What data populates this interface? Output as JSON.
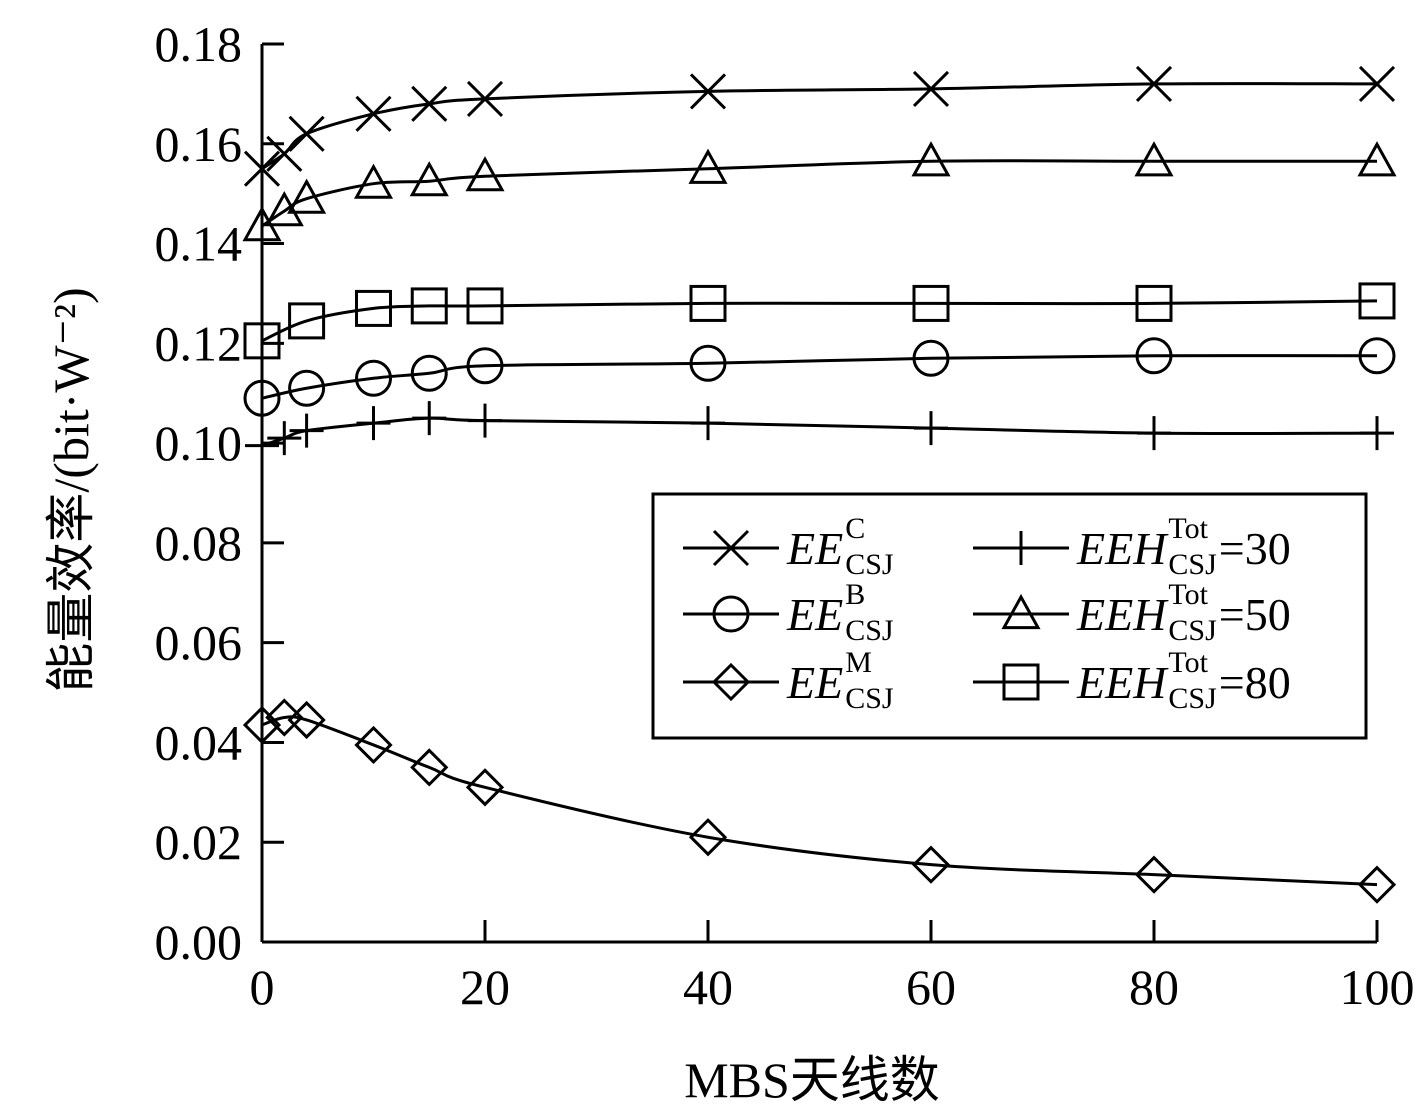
{
  "chart_data": {
    "type": "line",
    "xlabel": "MBS天线数",
    "ylabel": "能量效率/(bit·W⁻²)",
    "xlim": [
      0,
      100
    ],
    "ylim": [
      0,
      0.18
    ],
    "x_ticks": [
      "0",
      "20",
      "40",
      "60",
      "80",
      "100"
    ],
    "y_ticks": [
      "0.00",
      "0.02",
      "0.04",
      "0.06",
      "0.08",
      "0.10",
      "0.12",
      "0.14",
      "0.16",
      "0.18"
    ],
    "legend_position": "center-right",
    "grid": false,
    "series": [
      {
        "name": "EE_CSJ^C",
        "base": "EE",
        "sub": "CSJ",
        "sup": "C",
        "suffix": "",
        "marker": "x",
        "x": [
          0,
          2,
          4,
          10,
          15,
          20,
          40,
          60,
          80,
          100
        ],
        "y": [
          0.155,
          0.158,
          0.162,
          0.166,
          0.168,
          0.169,
          0.1705,
          0.171,
          0.172,
          0.172
        ]
      },
      {
        "name": "EE_CSJ^B",
        "base": "EE",
        "sub": "CSJ",
        "sup": "B",
        "suffix": "",
        "marker": "circle",
        "x": [
          0,
          4,
          10,
          15,
          20,
          40,
          60,
          80,
          100
        ],
        "y": [
          0.109,
          0.111,
          0.113,
          0.114,
          0.1155,
          0.116,
          0.117,
          0.1175,
          0.1175
        ]
      },
      {
        "name": "EE_CSJ^M",
        "base": "EE",
        "sub": "CSJ",
        "sup": "M",
        "suffix": "",
        "marker": "diamond",
        "x": [
          0,
          2,
          4,
          10,
          15,
          20,
          40,
          60,
          80,
          100
        ],
        "y": [
          0.0435,
          0.045,
          0.0445,
          0.0395,
          0.035,
          0.031,
          0.021,
          0.0155,
          0.0135,
          0.0115
        ]
      },
      {
        "name": "EEH_CSJ^Tot=30",
        "base": "EEH",
        "sub": "CSJ",
        "sup": "Tot",
        "suffix": "=30",
        "marker": "plus",
        "x": [
          0,
          2,
          4,
          10,
          15,
          20,
          40,
          60,
          80,
          100
        ],
        "y": [
          0.0995,
          0.101,
          0.1025,
          0.104,
          0.105,
          0.1045,
          0.104,
          0.103,
          0.102,
          0.102
        ]
      },
      {
        "name": "EEH_CSJ^Tot=50",
        "base": "EEH",
        "sub": "CSJ",
        "sup": "Tot",
        "suffix": "=50",
        "marker": "triangle",
        "x": [
          0,
          2,
          4,
          10,
          15,
          20,
          40,
          60,
          80,
          100
        ],
        "y": [
          0.1435,
          0.1465,
          0.149,
          0.152,
          0.1525,
          0.1535,
          0.155,
          0.1565,
          0.1565,
          0.1565
        ]
      },
      {
        "name": "EEH_CSJ^Tot=80",
        "base": "EEH",
        "sub": "CSJ",
        "sup": "Tot",
        "suffix": "=80",
        "marker": "square",
        "x": [
          0,
          4,
          10,
          15,
          20,
          40,
          60,
          80,
          100
        ],
        "y": [
          0.1205,
          0.1245,
          0.127,
          0.1275,
          0.1275,
          0.128,
          0.128,
          0.128,
          0.1285
        ]
      }
    ]
  }
}
